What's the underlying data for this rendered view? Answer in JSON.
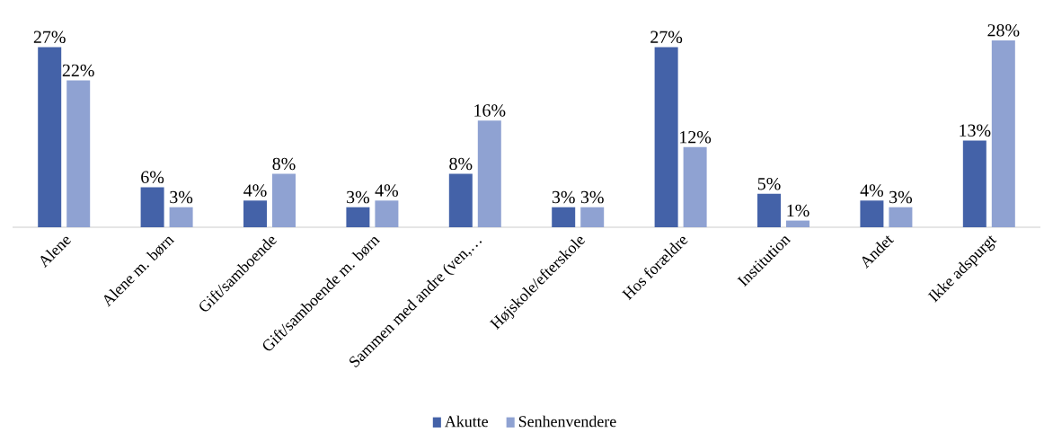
{
  "chart_data": {
    "type": "bar",
    "categories": [
      "Alene",
      "Alene m. børn",
      "Gift/samboende",
      "Gift/samboende m. børn",
      "Sammen med andre (ven,…",
      "Højskole/efterskole",
      "Hos forældre",
      "Institution",
      "Andet",
      "Ikke adspurgt"
    ],
    "series": [
      {
        "name": "Akutte",
        "color": "#4462a8",
        "values": [
          27,
          6,
          4,
          3,
          8,
          3,
          27,
          5,
          4,
          13
        ],
        "value_labels": [
          "27%",
          "6%",
          "4%",
          "3%",
          "8%",
          "3%",
          "27%",
          "5%",
          "4%",
          "13%"
        ]
      },
      {
        "name": "Senhenvendere",
        "color": "#8fa2d2",
        "values": [
          22,
          3,
          8,
          4,
          16,
          3,
          12,
          1,
          3,
          28
        ],
        "value_labels": [
          "22%",
          "3%",
          "8%",
          "4%",
          "16%",
          "3%",
          "12%",
          "1%",
          "3%",
          "28%"
        ]
      }
    ],
    "legend": "bottom"
  }
}
